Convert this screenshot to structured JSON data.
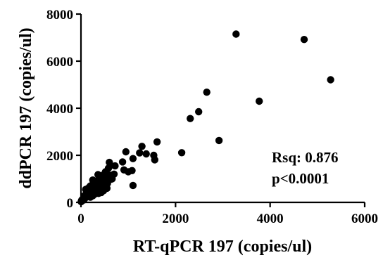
{
  "chart_data": {
    "type": "scatter",
    "xlabel": "RT-qPCR 197 (copies/ul)",
    "ylabel": "ddPCR 197 (copies/ul)",
    "xlim": [
      0,
      6000
    ],
    "ylim": [
      0,
      8000
    ],
    "x_ticks": [
      "0",
      "2000",
      "4000",
      "6000"
    ],
    "y_ticks": [
      "0",
      "2000",
      "4000",
      "6000",
      "8000"
    ],
    "annotations": [
      "Rsq: 0.876",
      "p<0.0001"
    ],
    "grid": false,
    "marker_color": "#000000",
    "x": [
      3280,
      4720,
      5280,
      3770,
      2660,
      2490,
      2310,
      2920,
      2130,
      1610,
      1540,
      1560,
      1290,
      1240,
      1380,
      1100,
      880,
      950,
      1080,
      1000,
      910,
      1100,
      600,
      620,
      580,
      520,
      540,
      480,
      450,
      520,
      500,
      420,
      380,
      360,
      300,
      280,
      250,
      200,
      180,
      150,
      120,
      100,
      80,
      60,
      40,
      20,
      10,
      700,
      660,
      630,
      440,
      400,
      350,
      330,
      320,
      300,
      270,
      230,
      210,
      190,
      170,
      160,
      140,
      130,
      110,
      90,
      70,
      50,
      30,
      15,
      5,
      560,
      470,
      410,
      390,
      340,
      260,
      240,
      220,
      200,
      150,
      100,
      80,
      60,
      550,
      480,
      430,
      370,
      290,
      250,
      240,
      200,
      640,
      720
    ],
    "y": [
      7150,
      6920,
      5210,
      4300,
      4680,
      3850,
      3560,
      2630,
      2110,
      2570,
      2000,
      1810,
      2380,
      2100,
      2060,
      1860,
      1720,
      2150,
      1350,
      1300,
      1380,
      720,
      1700,
      1560,
      1450,
      1300,
      1220,
      1180,
      1000,
      1100,
      950,
      1050,
      980,
      1180,
      900,
      850,
      950,
      700,
      650,
      600,
      500,
      550,
      300,
      200,
      150,
      100,
      50,
      1200,
      1000,
      980,
      850,
      900,
      750,
      800,
      620,
      700,
      560,
      520,
      480,
      600,
      400,
      350,
      380,
      300,
      280,
      250,
      200,
      150,
      120,
      80,
      30,
      800,
      700,
      650,
      550,
      520,
      500,
      450,
      400,
      300,
      250,
      200,
      180,
      100,
      600,
      500,
      420,
      380,
      350,
      280,
      300,
      220,
      1150,
      1550
    ]
  }
}
